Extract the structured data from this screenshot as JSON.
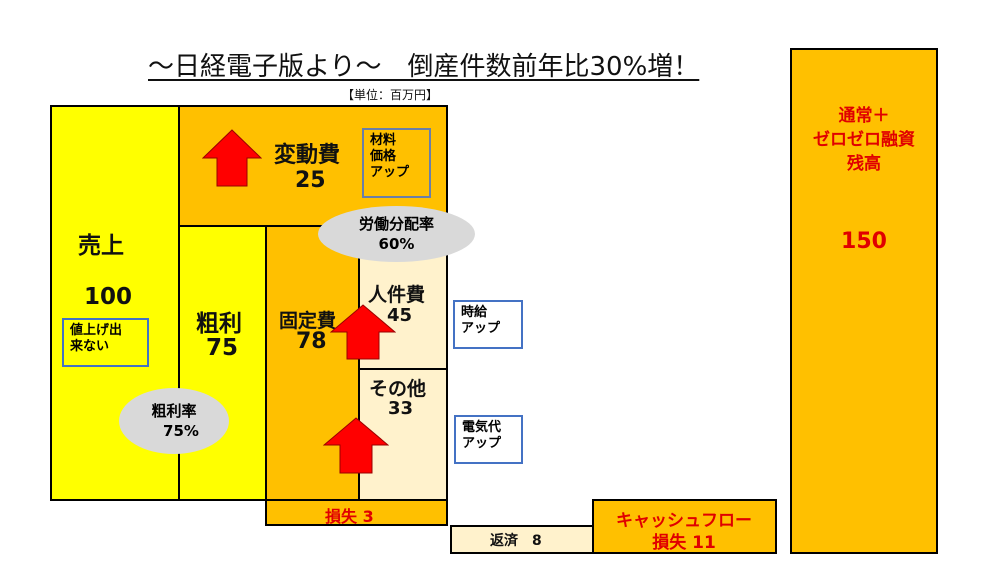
{
  "title": "～日経電子版より～　倒産件数前年比30%増！",
  "unit": "【単位：百万円】",
  "sales": {
    "label": "売上",
    "value": "100",
    "note": "値上げ出\n来ない"
  },
  "gross_profit": {
    "label": "粗利",
    "value": "75"
  },
  "gross_margin": {
    "label": "粗利率",
    "value": "75%"
  },
  "variable_cost": {
    "label": "変動費",
    "value": "25",
    "note": "材料\n価格\nアップ"
  },
  "fixed_cost": {
    "label": "固定費",
    "value": "78"
  },
  "labor_share": {
    "label": "労働分配率",
    "value": "60%"
  },
  "personnel": {
    "label": "人件費",
    "value": "45",
    "note": "時給\nアップ"
  },
  "other": {
    "label": "その他",
    "value": "33",
    "note": "電気代\nアップ"
  },
  "loss": {
    "label": "損失 3"
  },
  "repayment": {
    "label": "返済　8"
  },
  "cashflow": {
    "line1": "キャッシュフロー",
    "line2": "損失 11"
  },
  "loan": {
    "label": "通常＋\nゼロゼロ融資\n残高",
    "value": "150"
  },
  "colors": {
    "yellow": "#FFFF00",
    "orange": "#FFC000",
    "light": "#FFF2CC",
    "arrow": "#FF0000",
    "note_border": "#4472C4",
    "ellipse": "#D9D9D9"
  }
}
